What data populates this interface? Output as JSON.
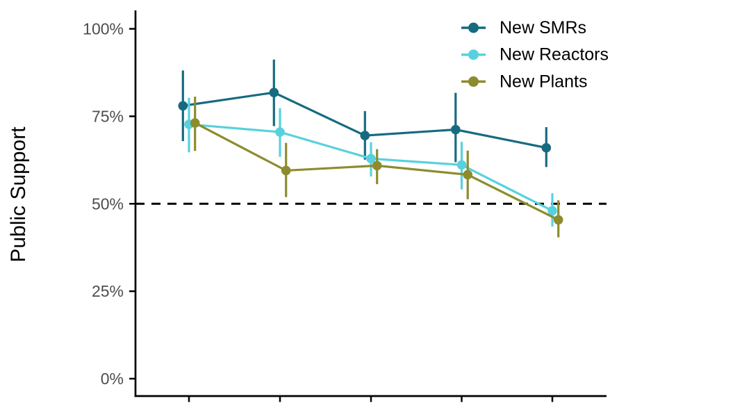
{
  "chart_data": {
    "type": "line",
    "subtype": "dot-line-with-error-bars",
    "title": "",
    "xlabel": "",
    "ylabel": "Public Support",
    "x": [
      1,
      2,
      3,
      4,
      5
    ],
    "x_tick_labels_visible": false,
    "ylim": [
      0,
      100
    ],
    "y_ticks_percent": [
      0,
      25,
      50,
      75,
      100
    ],
    "y_tick_labels": [
      "0%",
      "25%",
      "50%",
      "75%",
      "100%"
    ],
    "grid": false,
    "legend_position": "top-right-inside",
    "reference_line": {
      "y_percent": 50,
      "style": "dashed",
      "color": "#000000"
    },
    "colors": {
      "axis": "#000000",
      "tick_label": "#4d4d4d",
      "legend_text": "#000000",
      "axis_title": "#000000"
    },
    "series": [
      {
        "name": "New SMRs",
        "color": "#176b80",
        "values_percent": [
          78.0,
          81.8,
          69.5,
          71.2,
          66.0
        ],
        "ci_low_percent": [
          67.9,
          72.2,
          62.6,
          61.9,
          60.5
        ],
        "ci_high_percent": [
          88.1,
          91.2,
          76.5,
          81.7,
          71.9
        ]
      },
      {
        "name": "New Reactors",
        "color": "#58d1de",
        "values_percent": [
          72.7,
          70.5,
          62.9,
          61.1,
          48.0
        ],
        "ci_low_percent": [
          64.7,
          63.4,
          57.8,
          54.1,
          43.5
        ],
        "ci_high_percent": [
          80.3,
          77.3,
          67.6,
          67.7,
          53.0
        ]
      },
      {
        "name": "New Plants",
        "color": "#8c8c2e",
        "values_percent": [
          73.1,
          59.5,
          60.9,
          58.3,
          45.4
        ],
        "ci_low_percent": [
          65.1,
          51.9,
          55.6,
          51.3,
          40.4
        ],
        "ci_high_percent": [
          80.6,
          67.4,
          65.6,
          65.2,
          51.0
        ]
      }
    ]
  }
}
